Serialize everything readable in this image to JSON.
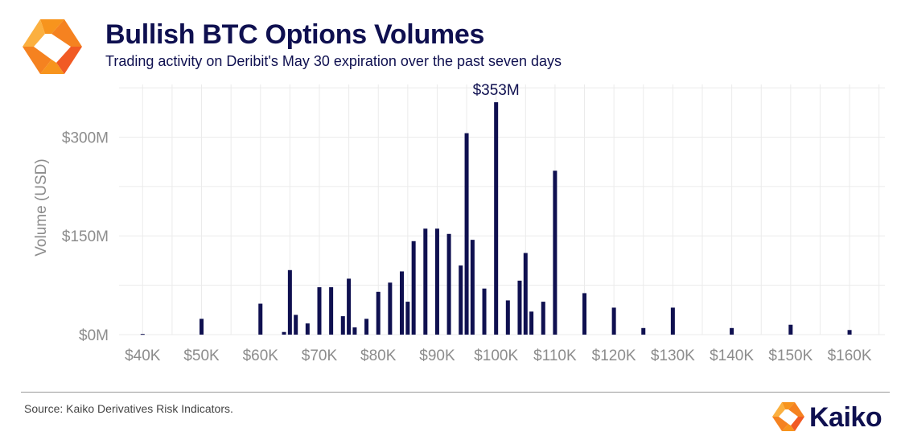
{
  "header": {
    "title": "Bullish BTC Options Volumes",
    "subtitle": "Trading activity on Deribit's May 30 expiration over the past seven days"
  },
  "footer": {
    "source": "Source: Kaiko Derivatives Risk Indicators.",
    "brand": "Kaiko"
  },
  "logo": {
    "icon": "kaiko-hexagon-icon",
    "colors": [
      "#f7941d",
      "#f15a24"
    ]
  },
  "colors": {
    "bar": "#0f1050",
    "grid": "#ebebeb",
    "axis_text": "#8c8c8c",
    "title": "#0f1050"
  },
  "chart_data": {
    "type": "bar",
    "xlabel": "",
    "ylabel": "Volume (USD)",
    "ylim": [
      0,
      380
    ],
    "xlim": [
      36000,
      166000
    ],
    "grid": true,
    "y_ticks": [
      {
        "value": 0,
        "label": "$0M"
      },
      {
        "value": 150,
        "label": "$150M"
      },
      {
        "value": 300,
        "label": "$300M"
      }
    ],
    "x_ticks": [
      {
        "value": 40000,
        "label": "$40K"
      },
      {
        "value": 50000,
        "label": "$50K"
      },
      {
        "value": 60000,
        "label": "$60K"
      },
      {
        "value": 70000,
        "label": "$70K"
      },
      {
        "value": 80000,
        "label": "$80K"
      },
      {
        "value": 90000,
        "label": "$90K"
      },
      {
        "value": 100000,
        "label": "$100K"
      },
      {
        "value": 110000,
        "label": "$110K"
      },
      {
        "value": 120000,
        "label": "$120K"
      },
      {
        "value": 130000,
        "label": "$130K"
      },
      {
        "value": 140000,
        "label": "$140K"
      },
      {
        "value": 150000,
        "label": "$150K"
      },
      {
        "value": 160000,
        "label": "$160K"
      }
    ],
    "x": [
      40000,
      50000,
      60000,
      64000,
      65000,
      66000,
      68000,
      70000,
      72000,
      74000,
      75000,
      76000,
      78000,
      80000,
      82000,
      84000,
      85000,
      86000,
      88000,
      90000,
      92000,
      94000,
      95000,
      96000,
      98000,
      100000,
      102000,
      104000,
      105000,
      106000,
      108000,
      110000,
      115000,
      120000,
      125000,
      130000,
      140000,
      150000,
      160000
    ],
    "values": [
      1,
      24,
      47,
      4,
      98,
      30,
      17,
      72,
      72,
      28,
      85,
      11,
      24,
      65,
      79,
      96,
      50,
      142,
      161,
      161,
      153,
      105,
      306,
      144,
      70,
      353,
      52,
      82,
      124,
      35,
      50,
      249,
      63,
      41,
      10,
      41,
      10,
      15,
      7
    ],
    "annotations": [
      {
        "x": 100000,
        "y": 353,
        "text": "$353M"
      }
    ]
  }
}
